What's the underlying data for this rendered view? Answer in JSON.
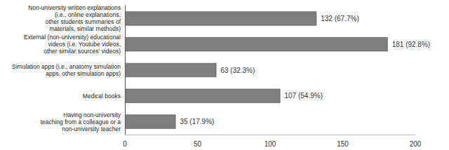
{
  "chart_data": {
    "type": "bar",
    "orientation": "horizontal",
    "categories": [
      "Non-university written explanations\n(i.e., online explanations,\nother students summaries of\nmaterials, similar methods)",
      "External (non-university) educational\nvideos (i.e. Youtube videos,\nother similar sources' videos)",
      "Simulation apps (i.e., anatomy simulation\napps, other simulation apps)",
      "Medical books",
      "Having non-university\nteaching from a colleague or a\nnon-university teacher"
    ],
    "values": [
      132,
      181,
      63,
      107,
      35
    ],
    "value_labels": [
      "132 (67.7%)",
      "181 (92.8%)",
      "63 (32.3%)",
      "107 (54.9%)",
      "35 (17.9%)"
    ],
    "color": "#7f7f7f",
    "xlim": [
      0,
      200
    ],
    "xticks": [
      0,
      50,
      100,
      150,
      200
    ],
    "grid": false,
    "data_labels": true
  }
}
